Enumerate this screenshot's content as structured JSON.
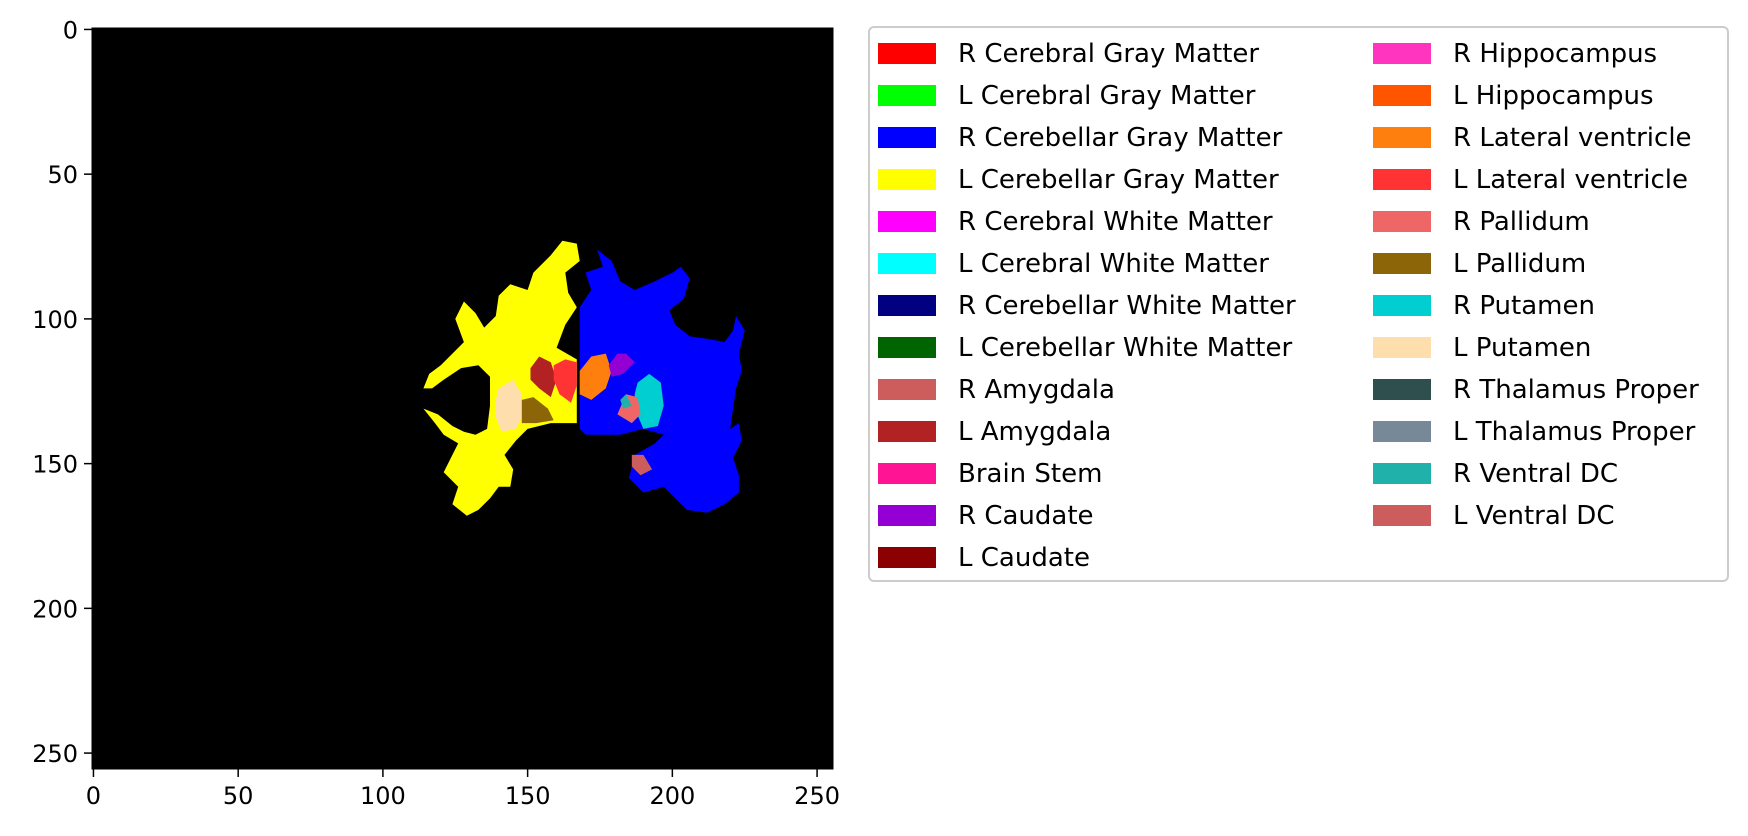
{
  "chart_data": {
    "type": "heatmap",
    "description_kind": "segmentation-label-image",
    "x_ticks": [
      0,
      50,
      100,
      150,
      200,
      250
    ],
    "y_ticks": [
      0,
      50,
      100,
      150,
      200,
      250
    ],
    "xlim": [
      -0.5,
      255.5
    ],
    "ylim": [
      255.5,
      -0.5
    ],
    "image_size": [
      256,
      256
    ],
    "background_color": "#000000",
    "legend_position": "right-outside",
    "legend_columns": 2,
    "legend": [
      {
        "label": "R Cerebral Gray Matter",
        "color": "#ff0000"
      },
      {
        "label": "L Cerebral Gray Matter",
        "color": "#00ff00"
      },
      {
        "label": "R Cerebellar Gray Matter",
        "color": "#0000ff"
      },
      {
        "label": "L Cerebellar Gray Matter",
        "color": "#ffff00"
      },
      {
        "label": "R Cerebral White Matter",
        "color": "#ff00ff"
      },
      {
        "label": "L Cerebral White Matter",
        "color": "#00ffff"
      },
      {
        "label": "R Cerebellar White Matter",
        "color": "#000080"
      },
      {
        "label": "L Cerebellar White Matter",
        "color": "#006400"
      },
      {
        "label": "R Amygdala",
        "color": "#cd5c5c"
      },
      {
        "label": "L Amygdala",
        "color": "#b22222"
      },
      {
        "label": "Brain Stem",
        "color": "#ff1493"
      },
      {
        "label": "R Caudate",
        "color": "#9400d3"
      },
      {
        "label": "L Caudate",
        "color": "#8b0000"
      },
      {
        "label": "R Hippocampus",
        "color": "#ff35c0"
      },
      {
        "label": "L Hippocampus",
        "color": "#ff5500"
      },
      {
        "label": "R Lateral ventricle",
        "color": "#ff7f0e"
      },
      {
        "label": "L Lateral ventricle",
        "color": "#ff3333"
      },
      {
        "label": "R Pallidum",
        "color": "#ee6666"
      },
      {
        "label": "L Pallidum",
        "color": "#8b6508"
      },
      {
        "label": "R Putamen",
        "color": "#00ced1"
      },
      {
        "label": "L Putamen",
        "color": "#ffdead"
      },
      {
        "label": "R Thalamus Proper",
        "color": "#2f4f4f"
      },
      {
        "label": "L Thalamus Proper",
        "color": "#778899"
      },
      {
        "label": "R Ventral DC",
        "color": "#20b2aa"
      },
      {
        "label": "L Ventral DC",
        "color": "#cd5c5c"
      }
    ],
    "regions": [
      {
        "label": "L Cerebellar Gray Matter",
        "color": "#ffff00",
        "outline": [
          [
            167,
            74
          ],
          [
            162,
            73
          ],
          [
            158,
            78
          ],
          [
            152,
            84
          ],
          [
            150,
            90
          ],
          [
            144,
            88
          ],
          [
            140,
            92
          ],
          [
            139,
            99
          ],
          [
            135,
            103
          ],
          [
            132,
            98
          ],
          [
            128,
            94
          ],
          [
            125,
            100
          ],
          [
            128,
            108
          ],
          [
            124,
            112
          ],
          [
            120,
            116
          ],
          [
            116,
            119
          ],
          [
            114,
            124
          ],
          [
            117,
            124
          ],
          [
            121,
            121
          ],
          [
            127,
            117
          ],
          [
            133,
            116
          ],
          [
            137,
            120
          ],
          [
            137,
            130
          ],
          [
            136,
            138
          ],
          [
            132,
            140
          ],
          [
            128,
            139
          ],
          [
            124,
            137
          ],
          [
            119,
            133
          ],
          [
            114,
            131
          ],
          [
            118,
            136
          ],
          [
            121,
            140
          ],
          [
            126,
            143
          ],
          [
            124,
            147
          ],
          [
            121,
            153
          ],
          [
            126,
            158
          ],
          [
            124,
            164
          ],
          [
            129,
            168
          ],
          [
            133,
            166
          ],
          [
            137,
            162
          ],
          [
            140,
            158
          ],
          [
            144,
            158
          ],
          [
            145,
            152
          ],
          [
            142,
            147
          ],
          [
            146,
            142
          ],
          [
            150,
            138
          ],
          [
            158,
            136
          ],
          [
            167,
            136
          ],
          [
            167,
            114
          ],
          [
            160,
            110
          ],
          [
            163,
            102
          ],
          [
            167,
            96
          ],
          [
            164,
            91
          ],
          [
            163,
            84
          ],
          [
            168,
            80
          ]
        ]
      },
      {
        "label": "R Cerebellar Gray Matter",
        "color": "#0000ff",
        "outline": [
          [
            168,
            96
          ],
          [
            172,
            90
          ],
          [
            170,
            84
          ],
          [
            176,
            82
          ],
          [
            174,
            76
          ],
          [
            179,
            80
          ],
          [
            182,
            87
          ],
          [
            187,
            90
          ],
          [
            194,
            87
          ],
          [
            200,
            84
          ],
          [
            203,
            82
          ],
          [
            206,
            86
          ],
          [
            204,
            93
          ],
          [
            199,
            97
          ],
          [
            201,
            102
          ],
          [
            206,
            106
          ],
          [
            213,
            107
          ],
          [
            218,
            108
          ],
          [
            221,
            104
          ],
          [
            222,
            99
          ],
          [
            225,
            104
          ],
          [
            223,
            112
          ],
          [
            224,
            118
          ],
          [
            222,
            124
          ],
          [
            221,
            131
          ],
          [
            220,
            138
          ],
          [
            223,
            136
          ],
          [
            224,
            142
          ],
          [
            221,
            148
          ],
          [
            223,
            154
          ],
          [
            223,
            160
          ],
          [
            218,
            164
          ],
          [
            212,
            167
          ],
          [
            205,
            166
          ],
          [
            200,
            161
          ],
          [
            197,
            158
          ],
          [
            190,
            160
          ],
          [
            185,
            155
          ],
          [
            187,
            147
          ],
          [
            194,
            143
          ],
          [
            197,
            140
          ],
          [
            190,
            138
          ],
          [
            182,
            140
          ],
          [
            170,
            140
          ],
          [
            168,
            138
          ],
          [
            168,
            114
          ]
        ]
      },
      {
        "label": "L Putamen",
        "color": "#ffdead",
        "outline": [
          [
            140,
            124
          ],
          [
            145,
            121
          ],
          [
            148,
            126
          ],
          [
            148,
            134
          ],
          [
            146,
            138
          ],
          [
            141,
            139
          ],
          [
            139,
            134
          ],
          [
            139,
            128
          ]
        ]
      },
      {
        "label": "L Pallidum",
        "color": "#8b6508",
        "outline": [
          [
            148,
            136
          ],
          [
            148,
            128
          ],
          [
            152,
            127
          ],
          [
            157,
            131
          ],
          [
            159,
            135
          ],
          [
            153,
            136
          ]
        ]
      },
      {
        "label": "L Amygdala",
        "color": "#b22222",
        "outline": [
          [
            151,
            117
          ],
          [
            154,
            113
          ],
          [
            158,
            115
          ],
          [
            160,
            121
          ],
          [
            158,
            127
          ],
          [
            154,
            124
          ],
          [
            151,
            121
          ]
        ]
      },
      {
        "label": "L Lateral ventricle",
        "color": "#ff3333",
        "outline": [
          [
            159,
            116
          ],
          [
            163,
            114
          ],
          [
            167,
            115
          ],
          [
            167,
            123
          ],
          [
            165,
            129
          ],
          [
            161,
            126
          ],
          [
            159,
            121
          ]
        ]
      },
      {
        "label": "R Lateral ventricle",
        "color": "#ff7f0e",
        "outline": [
          [
            168,
            118
          ],
          [
            172,
            113
          ],
          [
            177,
            112
          ],
          [
            179,
            118
          ],
          [
            177,
            124
          ],
          [
            172,
            128
          ],
          [
            168,
            126
          ]
        ]
      },
      {
        "label": "R Caudate",
        "color": "#9400d3",
        "outline": [
          [
            178,
            116
          ],
          [
            181,
            112
          ],
          [
            184,
            112
          ],
          [
            187,
            115
          ],
          [
            183,
            119
          ],
          [
            179,
            120
          ]
        ]
      },
      {
        "label": "R Putamen",
        "color": "#00ced1",
        "outline": [
          [
            188,
            122
          ],
          [
            192,
            119
          ],
          [
            196,
            122
          ],
          [
            197,
            130
          ],
          [
            195,
            137
          ],
          [
            190,
            138
          ],
          [
            187,
            131
          ],
          [
            187,
            126
          ]
        ]
      },
      {
        "label": "R Pallidum",
        "color": "#ee6666",
        "outline": [
          [
            181,
            133
          ],
          [
            184,
            126
          ],
          [
            188,
            127
          ],
          [
            189,
            133
          ],
          [
            186,
            136
          ]
        ]
      },
      {
        "label": "R Ventral DC",
        "color": "#20b2aa",
        "outline": [
          [
            182,
            128
          ],
          [
            184,
            126
          ],
          [
            186,
            130
          ],
          [
            183,
            131
          ]
        ]
      },
      {
        "label": "R Amygdala",
        "color": "#cd5c5c",
        "outline": [
          [
            186,
            147
          ],
          [
            190,
            147
          ],
          [
            193,
            152
          ],
          [
            189,
            154
          ],
          [
            186,
            151
          ]
        ]
      }
    ]
  }
}
